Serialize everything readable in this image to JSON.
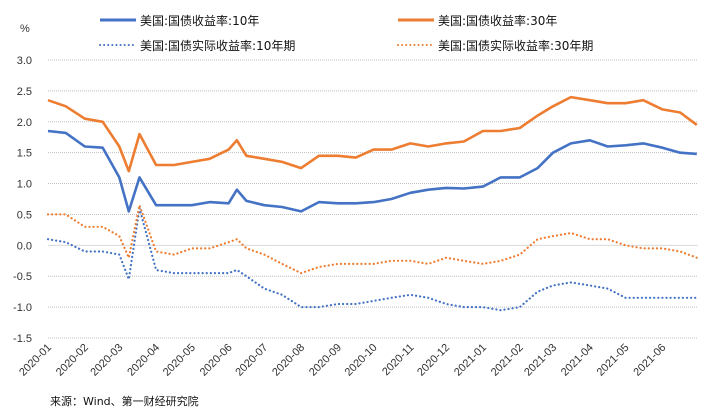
{
  "chart_data": {
    "type": "line",
    "title": "",
    "unit_label": "%",
    "ylabel": "%",
    "xlabel": "",
    "ylim": [
      -1.5,
      3.0
    ],
    "yticks": [
      "3.0",
      "2.5",
      "2.0",
      "1.5",
      "1.0",
      "0.5",
      "0.0",
      "-0.5",
      "-1.0",
      "-1.5"
    ],
    "xticks": [
      "2020-01",
      "2020-02",
      "2020-03",
      "2020-04",
      "2020-05",
      "2020-06",
      "2020-07",
      "2020-08",
      "2020-09",
      "2020-10",
      "2020-11",
      "2020-12",
      "2021-01",
      "2021-02",
      "2021-03",
      "2021-04",
      "2021-05",
      "2021-06"
    ],
    "grid": true,
    "legend_position": "top",
    "x": [
      "2020-01-01",
      "2020-01-16",
      "2020-02-01",
      "2020-02-16",
      "2020-03-01",
      "2020-03-09",
      "2020-03-18",
      "2020-04-01",
      "2020-04-16",
      "2020-05-01",
      "2020-05-16",
      "2020-06-01",
      "2020-06-08",
      "2020-06-16",
      "2020-07-01",
      "2020-07-16",
      "2020-08-01",
      "2020-08-16",
      "2020-09-01",
      "2020-09-16",
      "2020-10-01",
      "2020-10-16",
      "2020-11-01",
      "2020-11-16",
      "2020-12-01",
      "2020-12-16",
      "2021-01-01",
      "2021-01-16",
      "2021-02-01",
      "2021-02-16",
      "2021-03-01",
      "2021-03-16",
      "2021-04-01",
      "2021-04-16",
      "2021-05-01",
      "2021-05-16",
      "2021-06-01",
      "2021-06-16",
      "2021-06-30"
    ],
    "series": [
      {
        "name": "美国:国债收益率:10年",
        "color": "#4472C4",
        "style": "solid",
        "values": [
          1.85,
          1.82,
          1.6,
          1.58,
          1.1,
          0.55,
          1.1,
          0.65,
          0.65,
          0.65,
          0.7,
          0.68,
          0.9,
          0.72,
          0.65,
          0.62,
          0.55,
          0.7,
          0.68,
          0.68,
          0.7,
          0.75,
          0.85,
          0.9,
          0.93,
          0.92,
          0.95,
          1.1,
          1.1,
          1.25,
          1.5,
          1.65,
          1.7,
          1.6,
          1.62,
          1.65,
          1.58,
          1.5,
          1.48
        ]
      },
      {
        "name": "美国:国债收益率:30年",
        "color": "#ED7D31",
        "style": "solid",
        "values": [
          2.35,
          2.25,
          2.05,
          2.0,
          1.6,
          1.2,
          1.8,
          1.3,
          1.3,
          1.35,
          1.4,
          1.55,
          1.7,
          1.45,
          1.4,
          1.35,
          1.25,
          1.45,
          1.45,
          1.42,
          1.55,
          1.55,
          1.65,
          1.6,
          1.65,
          1.68,
          1.85,
          1.85,
          1.9,
          2.1,
          2.25,
          2.4,
          2.35,
          2.3,
          2.3,
          2.35,
          2.2,
          2.15,
          1.95
        ]
      },
      {
        "name": "美国:国债实际收益率:10年期",
        "color": "#4472C4",
        "style": "dotted",
        "values": [
          0.1,
          0.05,
          -0.1,
          -0.1,
          -0.15,
          -0.55,
          0.6,
          -0.4,
          -0.45,
          -0.45,
          -0.45,
          -0.45,
          -0.4,
          -0.5,
          -0.7,
          -0.8,
          -1.0,
          -1.0,
          -0.95,
          -0.95,
          -0.9,
          -0.85,
          -0.8,
          -0.85,
          -0.95,
          -1.0,
          -1.0,
          -1.05,
          -1.0,
          -0.75,
          -0.65,
          -0.6,
          -0.65,
          -0.7,
          -0.85,
          -0.85,
          -0.85,
          -0.85,
          -0.85
        ]
      },
      {
        "name": "美国:国债实际收益率:30年期",
        "color": "#ED7D31",
        "style": "dotted",
        "values": [
          0.5,
          0.5,
          0.3,
          0.3,
          0.15,
          -0.2,
          0.65,
          -0.1,
          -0.15,
          -0.05,
          -0.05,
          0.05,
          0.1,
          -0.05,
          -0.15,
          -0.3,
          -0.45,
          -0.35,
          -0.3,
          -0.3,
          -0.3,
          -0.25,
          -0.25,
          -0.3,
          -0.2,
          -0.25,
          -0.3,
          -0.25,
          -0.15,
          0.1,
          0.15,
          0.2,
          0.1,
          0.1,
          0.0,
          -0.05,
          -0.05,
          -0.1,
          -0.2
        ]
      }
    ]
  },
  "source": "来源：Wind、第一财经研究院"
}
